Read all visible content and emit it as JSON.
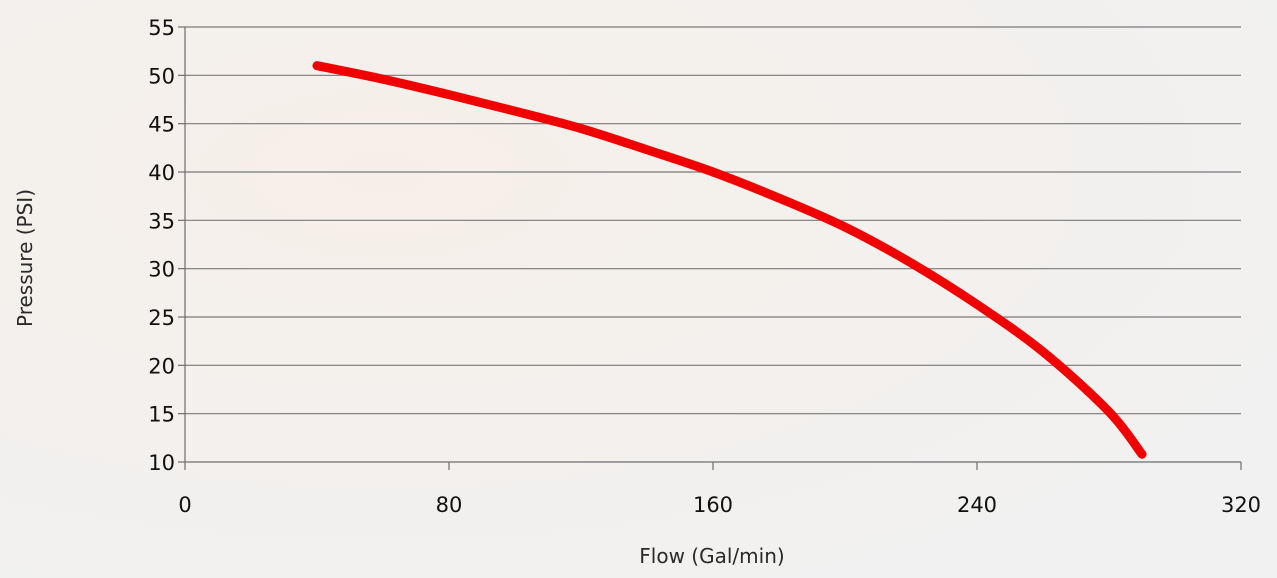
{
  "chart_data": {
    "type": "line",
    "title": "",
    "xlabel": "Flow (Gal/min)",
    "ylabel": "Pressure (PSI)",
    "xlim": [
      0,
      320
    ],
    "ylim": [
      10,
      55
    ],
    "x_ticks": [
      0,
      80,
      160,
      240,
      320
    ],
    "y_ticks": [
      10,
      15,
      20,
      25,
      30,
      35,
      40,
      45,
      50,
      55
    ],
    "grid": "horizontal",
    "legend": "none",
    "series": [
      {
        "color": "#f00000",
        "x": [
          40,
          60,
          80,
          100,
          120,
          140,
          160,
          180,
          200,
          220,
          240,
          260,
          280,
          290
        ],
        "y": [
          51,
          49.6,
          48,
          46.3,
          44.5,
          42.3,
          40,
          37.3,
          34.3,
          30.6,
          26.3,
          21.4,
          15.2,
          10.8
        ]
      }
    ]
  }
}
